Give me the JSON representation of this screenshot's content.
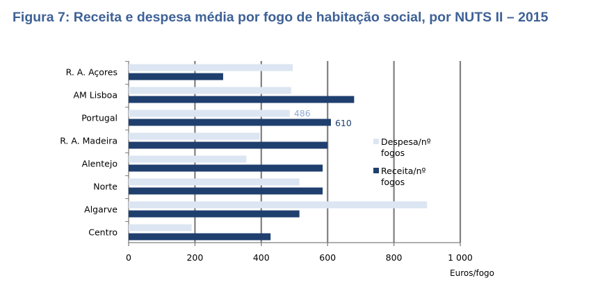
{
  "colors": {
    "title": "#3e6196",
    "despesa": "#dce6f2",
    "receita": "#1f3f6e",
    "grid": "#7f7f7f",
    "text": "#000000",
    "despesa_label": "#8ea9cf",
    "receita_label": "#1f3f6e"
  },
  "chart_data": {
    "type": "bar",
    "orientation": "horizontal",
    "title": "Figura 7: Receita e despesa média por fogo de habitação social, por NUTS II – 2015",
    "xlabel": "Euros/fogo",
    "ylabel": "",
    "xlim": [
      0,
      1000
    ],
    "ticks": [
      {
        "v": 0,
        "label": "0"
      },
      {
        "v": 200,
        "label": "200"
      },
      {
        "v": 400,
        "label": "400"
      },
      {
        "v": 600,
        "label": "600"
      },
      {
        "v": 800,
        "label": "800"
      },
      {
        "v": 1000,
        "label": "1 000"
      }
    ],
    "grid": true,
    "legend_position": "right",
    "categories": [
      "R. A. Açores",
      "AM Lisboa",
      "Portugal",
      "R. A. Madeira",
      "Alentejo",
      "Norte",
      "Algarve",
      "Centro"
    ],
    "series": [
      {
        "name": "Despesa/nº fogos",
        "legend_lines": [
          "Despesa/nº",
          "fogos"
        ],
        "key": "despesa",
        "values": [
          495,
          490,
          486,
          395,
          355,
          515,
          900,
          190
        ]
      },
      {
        "name": "Receita/nº fogos",
        "legend_lines": [
          "Receita/nº",
          "fogos"
        ],
        "key": "receita",
        "values": [
          285,
          680,
          610,
          600,
          585,
          585,
          515,
          428
        ]
      }
    ],
    "data_labels": [
      {
        "series": "despesa",
        "category": "Portugal",
        "text": "486"
      },
      {
        "series": "receita",
        "category": "Portugal",
        "text": "610"
      }
    ]
  }
}
